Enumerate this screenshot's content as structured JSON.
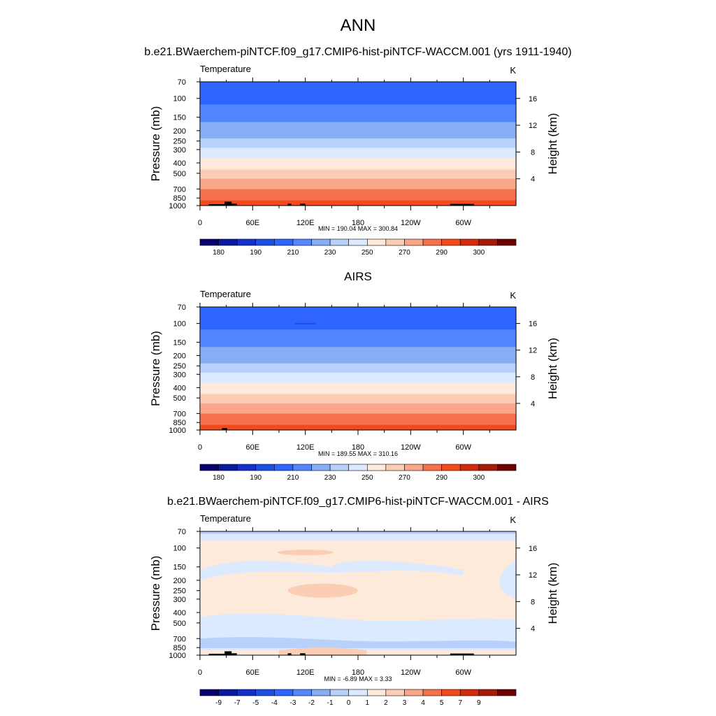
{
  "title": "ANN",
  "chart_data": [
    {
      "type": "heatmap",
      "title": "b.e21.BWaerchem-piNTCF.f09_g17.CMIP6-hist-piNTCF-WACCM.001 (yrs 1911-1940)",
      "left_label": "Temperature",
      "unit_label": "K",
      "ylabel": "Pressure (mb)",
      "ylabel_right": "Height (km)",
      "xticks": [
        "0",
        "60E",
        "120E",
        "180",
        "120W",
        "60W"
      ],
      "xlim": [
        0,
        360
      ],
      "yticks": [
        "70",
        "100",
        "150",
        "200",
        "250",
        "300",
        "400",
        "500",
        "700",
        "850",
        "1000"
      ],
      "ylim": [
        1000,
        70
      ],
      "yscale": "log",
      "height_ticks": [
        "16",
        "12",
        "8",
        "4"
      ],
      "stats": "MIN = 190.04  MAX = 300.84",
      "colorbar_labels": [
        "180",
        "190",
        "210",
        "230",
        "250",
        "270",
        "290",
        "300"
      ],
      "levels": [
        180,
        185,
        190,
        200,
        210,
        220,
        230,
        240,
        250,
        260,
        270,
        280,
        290,
        295,
        300
      ],
      "profile": [
        {
          "p": 70,
          "t": 205
        },
        {
          "p": 100,
          "t": 206
        },
        {
          "p": 130,
          "t": 214
        },
        {
          "p": 150,
          "t": 218
        },
        {
          "p": 200,
          "t": 224
        },
        {
          "p": 250,
          "t": 232
        },
        {
          "p": 300,
          "t": 242
        },
        {
          "p": 400,
          "t": 254
        },
        {
          "p": 500,
          "t": 264
        },
        {
          "p": 700,
          "t": 280
        },
        {
          "p": 850,
          "t": 288
        },
        {
          "p": 1000,
          "t": 294
        }
      ],
      "min": 190.04,
      "max": 300.84
    },
    {
      "type": "heatmap",
      "title": "AIRS",
      "left_label": "Temperature",
      "unit_label": "K",
      "ylabel": "Pressure (mb)",
      "ylabel_right": "Height (km)",
      "xticks": [
        "0",
        "60E",
        "120E",
        "180",
        "120W",
        "60W"
      ],
      "xlim": [
        0,
        360
      ],
      "yticks": [
        "70",
        "100",
        "150",
        "200",
        "250",
        "300",
        "400",
        "500",
        "700",
        "850",
        "1000"
      ],
      "ylim": [
        1000,
        70
      ],
      "yscale": "log",
      "height_ticks": [
        "16",
        "12",
        "8",
        "4"
      ],
      "stats": "MIN = 189.55  MAX = 310.16",
      "colorbar_labels": [
        "180",
        "190",
        "210",
        "230",
        "250",
        "270",
        "290",
        "300"
      ],
      "levels": [
        180,
        185,
        190,
        200,
        210,
        220,
        230,
        240,
        250,
        260,
        270,
        280,
        290,
        295,
        300
      ],
      "profile": [
        {
          "p": 70,
          "t": 205
        },
        {
          "p": 100,
          "t": 206
        },
        {
          "p": 130,
          "t": 214
        },
        {
          "p": 150,
          "t": 218
        },
        {
          "p": 200,
          "t": 224
        },
        {
          "p": 250,
          "t": 232
        },
        {
          "p": 300,
          "t": 242
        },
        {
          "p": 400,
          "t": 254
        },
        {
          "p": 500,
          "t": 264
        },
        {
          "p": 700,
          "t": 280
        },
        {
          "p": 850,
          "t": 288
        },
        {
          "p": 1000,
          "t": 294
        }
      ],
      "min": 189.55,
      "max": 310.16
    },
    {
      "type": "heatmap",
      "title": "b.e21.BWaerchem-piNTCF.f09_g17.CMIP6-hist-piNTCF-WACCM.001 - AIRS",
      "left_label": "Temperature",
      "unit_label": "K",
      "ylabel": "Pressure (mb)",
      "ylabel_right": "Height (km)",
      "xticks": [
        "0",
        "60E",
        "120E",
        "180",
        "120W",
        "60W"
      ],
      "xlim": [
        0,
        360
      ],
      "yticks": [
        "70",
        "100",
        "150",
        "200",
        "250",
        "300",
        "400",
        "500",
        "700",
        "850",
        "1000"
      ],
      "ylim": [
        1000,
        70
      ],
      "yscale": "log",
      "height_ticks": [
        "16",
        "12",
        "8",
        "4"
      ],
      "stats": "MIN =  -6.89  MAX =   3.33",
      "colorbar_labels": [
        "-9",
        "-7",
        "-5",
        "-4",
        "-3",
        "-2",
        "-1",
        "0",
        "1",
        "2",
        "3",
        "4",
        "5",
        "7",
        "9"
      ],
      "levels": [
        -11,
        -9,
        -7,
        -5,
        -4,
        -3,
        -2,
        -1,
        0,
        1,
        2,
        3,
        4,
        5,
        7,
        9
      ],
      "min": -6.89,
      "max": 3.33
    }
  ],
  "colors": {
    "temperature_scale": [
      "#08006e",
      "#0a1aa0",
      "#1530c8",
      "#1d4fe0",
      "#2f64ff",
      "#5287ff",
      "#87aef5",
      "#b8d1fa",
      "#dbeaff",
      "#fdeadb",
      "#fbcdb5",
      "#f9a68a",
      "#f6724c",
      "#f24a1c",
      "#d42a0e",
      "#a61a0a",
      "#6e0000"
    ],
    "difference_scale": [
      "#08006e",
      "#0a1aa0",
      "#1530c8",
      "#1d4fe0",
      "#2f64ff",
      "#5287ff",
      "#87aef5",
      "#b8d1fa",
      "#dbeaff",
      "#fdeadb",
      "#fbcdb5",
      "#f9a68a",
      "#f6724c",
      "#f24a1c",
      "#d42a0e",
      "#a61a0a",
      "#6e0000"
    ],
    "topography": "#000000"
  }
}
